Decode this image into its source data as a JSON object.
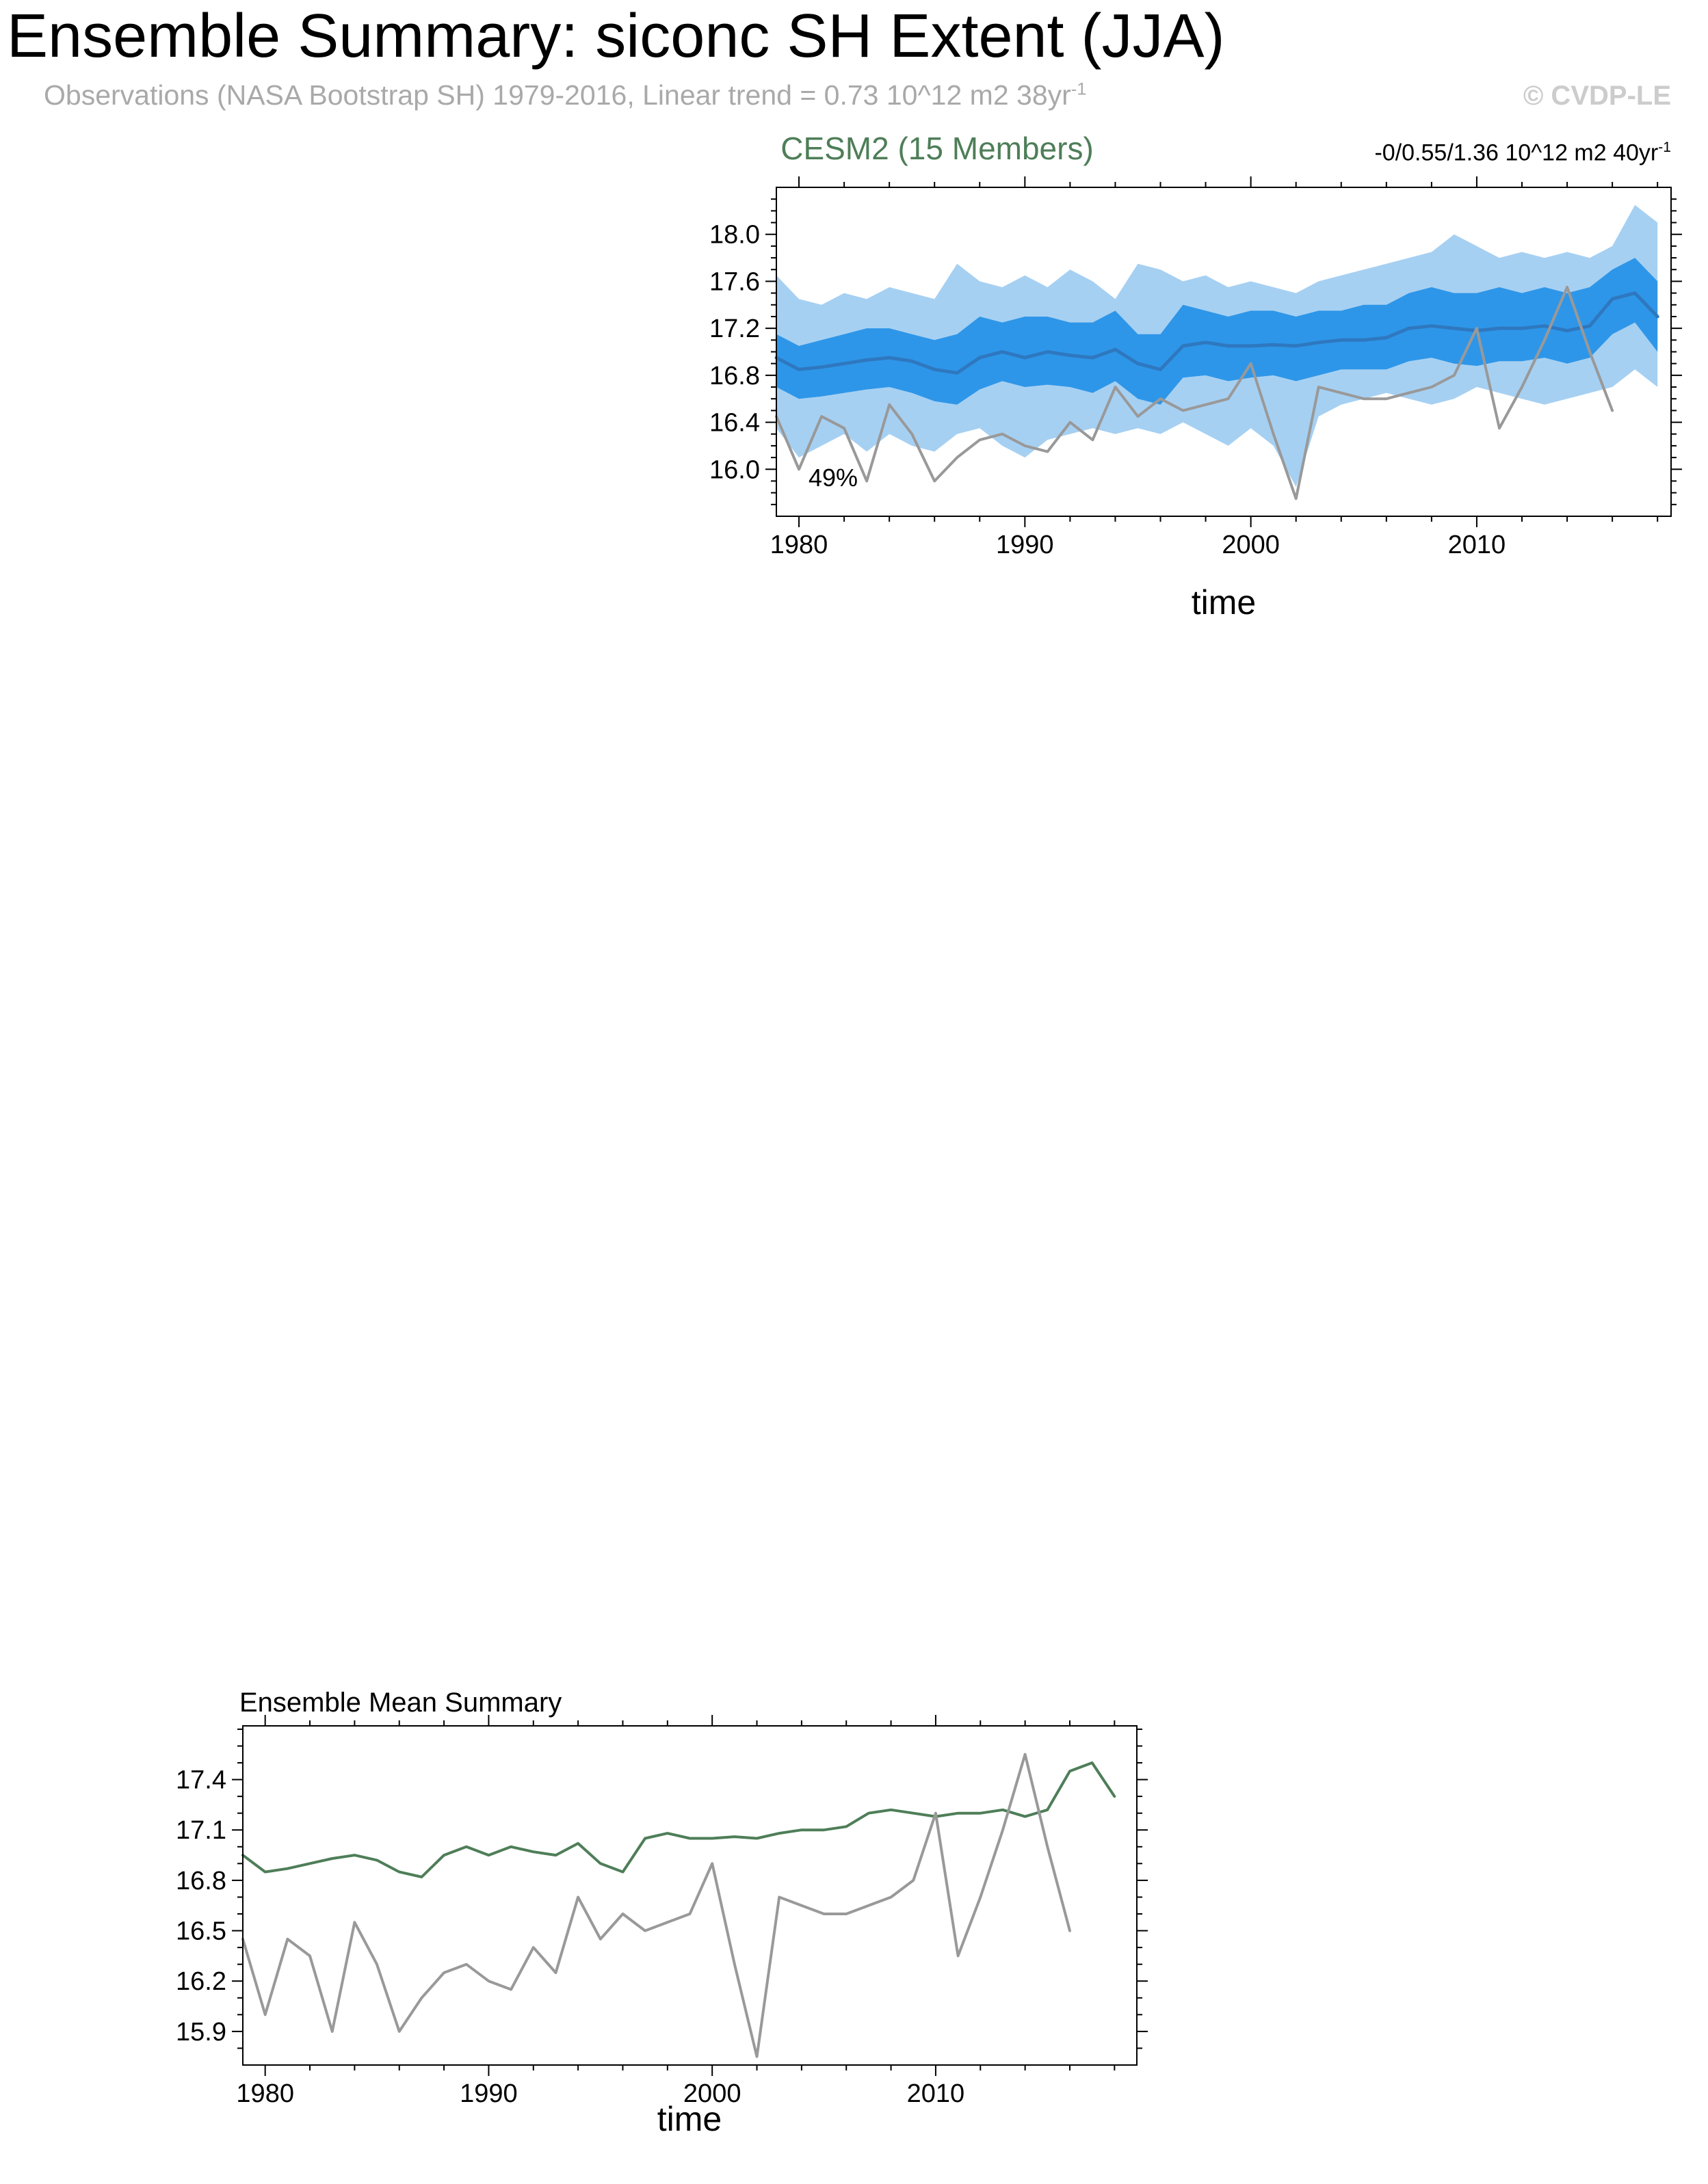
{
  "header": {
    "title": "Ensemble Summary: siconc SH Extent (JJA)",
    "subtitle": "Observations (NASA Bootstrap SH) 1979-2016, Linear trend = 0.73 10^12 m2 38yr",
    "subtitle_sup": "-1",
    "watermark": "© CVDP-LE"
  },
  "colors": {
    "model_label": "#4e7e58",
    "subtitle": "#a9a9a9",
    "watermark": "#cccccc",
    "ensemble_outer_band": "#a6d0f2",
    "ensemble_inner_band": "#2e96e8",
    "ensemble_mean_line": "#2e78c0",
    "observations_line": "#999999",
    "ensemble_mean_green": "#4e7e58"
  },
  "chart_data": [
    {
      "name": "ensemble-spread",
      "type": "area",
      "title": "CESM2 (15 Members)",
      "trend_label": "-0/0.55/1.36 10^12 m2 40yr",
      "trend_sup": "-1",
      "annotation": "49%",
      "xlabel": "time",
      "ylabel": "",
      "xlim": [
        1979,
        2018.6
      ],
      "ylim": [
        15.6,
        18.4
      ],
      "x_ticks": [
        1980,
        1990,
        2000,
        2010
      ],
      "x_minor_step": 2,
      "y_ticks": [
        16.0,
        16.4,
        16.8,
        17.2,
        17.6,
        18.0
      ],
      "y_minor_step": 0.1,
      "bands": [
        {
          "name": "ensemble-min-max-band",
          "color": "#a6d0f2",
          "x": [
            1979,
            1980,
            1981,
            1982,
            1983,
            1984,
            1985,
            1986,
            1987,
            1988,
            1989,
            1990,
            1991,
            1992,
            1993,
            1994,
            1995,
            1996,
            1997,
            1998,
            1999,
            2000,
            2001,
            2002,
            2003,
            2004,
            2005,
            2006,
            2007,
            2008,
            2009,
            2010,
            2011,
            2012,
            2013,
            2014,
            2015,
            2016,
            2017,
            2018
          ],
          "upper": [
            17.65,
            17.45,
            17.4,
            17.5,
            17.45,
            17.55,
            17.5,
            17.45,
            17.75,
            17.6,
            17.55,
            17.65,
            17.55,
            17.7,
            17.6,
            17.45,
            17.75,
            17.7,
            17.6,
            17.65,
            17.55,
            17.6,
            17.55,
            17.5,
            17.6,
            17.65,
            17.7,
            17.75,
            17.8,
            17.85,
            18.0,
            17.9,
            17.8,
            17.85,
            17.8,
            17.85,
            17.8,
            17.9,
            18.25,
            18.1
          ],
          "lower": [
            16.35,
            16.1,
            16.2,
            16.3,
            16.15,
            16.3,
            16.2,
            16.15,
            16.3,
            16.35,
            16.2,
            16.1,
            16.25,
            16.3,
            16.35,
            16.3,
            16.35,
            16.3,
            16.4,
            16.3,
            16.2,
            16.35,
            16.2,
            15.85,
            16.45,
            16.55,
            16.6,
            16.65,
            16.6,
            16.55,
            16.6,
            16.7,
            16.65,
            16.6,
            16.55,
            16.6,
            16.65,
            16.7,
            16.85,
            16.7
          ]
        },
        {
          "name": "ensemble-inner-spread-band",
          "color": "#2e96e8",
          "x": [
            1979,
            1980,
            1981,
            1982,
            1983,
            1984,
            1985,
            1986,
            1987,
            1988,
            1989,
            1990,
            1991,
            1992,
            1993,
            1994,
            1995,
            1996,
            1997,
            1998,
            1999,
            2000,
            2001,
            2002,
            2003,
            2004,
            2005,
            2006,
            2007,
            2008,
            2009,
            2010,
            2011,
            2012,
            2013,
            2014,
            2015,
            2016,
            2017,
            2018
          ],
          "upper": [
            17.15,
            17.05,
            17.1,
            17.15,
            17.2,
            17.2,
            17.15,
            17.1,
            17.15,
            17.3,
            17.25,
            17.3,
            17.3,
            17.25,
            17.25,
            17.35,
            17.15,
            17.15,
            17.4,
            17.35,
            17.3,
            17.35,
            17.35,
            17.3,
            17.35,
            17.35,
            17.4,
            17.4,
            17.5,
            17.55,
            17.5,
            17.5,
            17.55,
            17.5,
            17.55,
            17.5,
            17.55,
            17.7,
            17.8,
            17.6
          ],
          "lower": [
            16.7,
            16.6,
            16.62,
            16.65,
            16.68,
            16.7,
            16.65,
            16.58,
            16.55,
            16.68,
            16.75,
            16.7,
            16.72,
            16.7,
            16.65,
            16.75,
            16.6,
            16.55,
            16.78,
            16.8,
            16.75,
            16.78,
            16.8,
            16.75,
            16.8,
            16.85,
            16.85,
            16.85,
            16.92,
            16.95,
            16.9,
            16.88,
            16.92,
            16.92,
            16.95,
            16.9,
            16.95,
            17.15,
            17.25,
            17.0
          ]
        }
      ],
      "lines": [
        {
          "name": "ensemble-mean-line",
          "color": "#2e78c0",
          "width": 5,
          "x": [
            1979,
            1980,
            1981,
            1982,
            1983,
            1984,
            1985,
            1986,
            1987,
            1988,
            1989,
            1990,
            1991,
            1992,
            1993,
            1994,
            1995,
            1996,
            1997,
            1998,
            1999,
            2000,
            2001,
            2002,
            2003,
            2004,
            2005,
            2006,
            2007,
            2008,
            2009,
            2010,
            2011,
            2012,
            2013,
            2014,
            2015,
            2016,
            2017,
            2018
          ],
          "y": [
            16.95,
            16.85,
            16.87,
            16.9,
            16.93,
            16.95,
            16.92,
            16.85,
            16.82,
            16.95,
            17.0,
            16.95,
            17.0,
            16.97,
            16.95,
            17.02,
            16.9,
            16.85,
            17.05,
            17.08,
            17.05,
            17.05,
            17.06,
            17.05,
            17.08,
            17.1,
            17.1,
            17.12,
            17.2,
            17.22,
            17.2,
            17.18,
            17.2,
            17.2,
            17.22,
            17.18,
            17.22,
            17.45,
            17.5,
            17.3
          ]
        },
        {
          "name": "observations-line",
          "color": "#999999",
          "width": 4,
          "x": [
            1979,
            1980,
            1981,
            1982,
            1983,
            1984,
            1985,
            1986,
            1987,
            1988,
            1989,
            1990,
            1991,
            1992,
            1993,
            1994,
            1995,
            1996,
            1997,
            1998,
            1999,
            2000,
            2001,
            2002,
            2003,
            2004,
            2005,
            2006,
            2007,
            2008,
            2009,
            2010,
            2011,
            2012,
            2013,
            2014,
            2015,
            2016
          ],
          "y": [
            16.45,
            16.0,
            16.45,
            16.35,
            15.9,
            16.55,
            16.3,
            15.9,
            16.1,
            16.25,
            16.3,
            16.2,
            16.15,
            16.4,
            16.25,
            16.7,
            16.45,
            16.6,
            16.5,
            16.55,
            16.6,
            16.9,
            16.3,
            15.75,
            16.7,
            16.65,
            16.6,
            16.6,
            16.65,
            16.7,
            16.8,
            17.2,
            16.35,
            16.7,
            17.1,
            17.55,
            17.0,
            16.5
          ]
        }
      ]
    },
    {
      "name": "ensemble-mean-summary",
      "type": "line",
      "title": "Ensemble Mean Summary",
      "xlabel": "time",
      "ylabel": "",
      "xlim": [
        1979,
        2019
      ],
      "ylim": [
        15.7,
        17.72
      ],
      "x_ticks": [
        1980,
        1990,
        2000,
        2010
      ],
      "x_minor_step": 2,
      "y_ticks": [
        15.9,
        16.2,
        16.5,
        16.8,
        17.1,
        17.4
      ],
      "y_minor_step": 0.1,
      "bands": [],
      "lines": [
        {
          "name": "ensemble-mean-line",
          "color": "#4e7e58",
          "width": 4,
          "x": [
            1979,
            1980,
            1981,
            1982,
            1983,
            1984,
            1985,
            1986,
            1987,
            1988,
            1989,
            1990,
            1991,
            1992,
            1993,
            1994,
            1995,
            1996,
            1997,
            1998,
            1999,
            2000,
            2001,
            2002,
            2003,
            2004,
            2005,
            2006,
            2007,
            2008,
            2009,
            2010,
            2011,
            2012,
            2013,
            2014,
            2015,
            2016,
            2017,
            2018
          ],
          "y": [
            16.95,
            16.85,
            16.87,
            16.9,
            16.93,
            16.95,
            16.92,
            16.85,
            16.82,
            16.95,
            17.0,
            16.95,
            17.0,
            16.97,
            16.95,
            17.02,
            16.9,
            16.85,
            17.05,
            17.08,
            17.05,
            17.05,
            17.06,
            17.05,
            17.08,
            17.1,
            17.1,
            17.12,
            17.2,
            17.22,
            17.2,
            17.18,
            17.2,
            17.2,
            17.22,
            17.18,
            17.22,
            17.45,
            17.5,
            17.3
          ]
        },
        {
          "name": "observations-line",
          "color": "#999999",
          "width": 4,
          "x": [
            1979,
            1980,
            1981,
            1982,
            1983,
            1984,
            1985,
            1986,
            1987,
            1988,
            1989,
            1990,
            1991,
            1992,
            1993,
            1994,
            1995,
            1996,
            1997,
            1998,
            1999,
            2000,
            2001,
            2002,
            2003,
            2004,
            2005,
            2006,
            2007,
            2008,
            2009,
            2010,
            2011,
            2012,
            2013,
            2014,
            2015,
            2016
          ],
          "y": [
            16.45,
            16.0,
            16.45,
            16.35,
            15.9,
            16.55,
            16.3,
            15.9,
            16.1,
            16.25,
            16.3,
            16.2,
            16.15,
            16.4,
            16.25,
            16.7,
            16.45,
            16.6,
            16.5,
            16.55,
            16.6,
            16.9,
            16.3,
            15.75,
            16.7,
            16.65,
            16.6,
            16.6,
            16.65,
            16.7,
            16.8,
            17.2,
            16.35,
            16.7,
            17.1,
            17.55,
            17.0,
            16.5
          ]
        }
      ]
    }
  ]
}
